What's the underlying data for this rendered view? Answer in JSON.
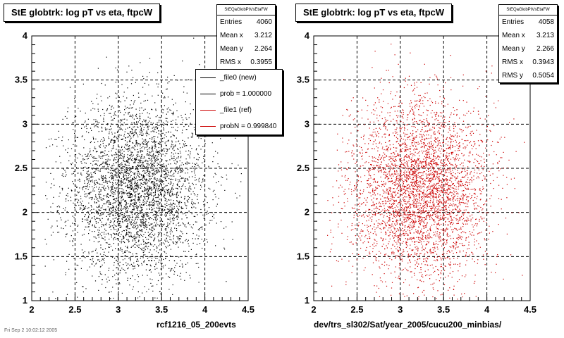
{
  "chart_data": [
    {
      "type": "scatter",
      "title": "StE globtrk: log pT vs eta, ftpcW",
      "xlabel": "rcf1216_05_200evts",
      "ylabel": "",
      "xlim": [
        2,
        4.5
      ],
      "ylim": [
        1,
        4
      ],
      "xticks": [
        "2",
        "2.5",
        "3",
        "3.5",
        "4",
        "4.5"
      ],
      "yticks": [
        "1",
        "1.5",
        "2",
        "2.5",
        "3",
        "3.5",
        "4"
      ],
      "grid": true,
      "series": [
        {
          "name": "_file0 (new)",
          "color": "#000000",
          "n_points": 4060,
          "mean_x": 3.212,
          "mean_y": 2.264,
          "rms_x": 0.3955
        }
      ],
      "stats": {
        "header": "StEQaGlobPtVsEtaFW",
        "rows": [
          {
            "label": "Entries",
            "value": "4060"
          },
          {
            "label": "Mean x",
            "value": "3.212"
          },
          {
            "label": "Mean y",
            "value": "2.264"
          },
          {
            "label": "RMS x",
            "value": "0.3955"
          }
        ]
      },
      "legend": {
        "placement": "top-right",
        "items": [
          {
            "label": "_file0 (new)",
            "color": "#000000"
          },
          {
            "label": "prob = 1.000000",
            "color": "#000000"
          },
          {
            "label": "_file1 (ref)",
            "color": "#cc0000"
          },
          {
            "label": "probN = 0.999840",
            "color": "#cc0000"
          }
        ]
      }
    },
    {
      "type": "scatter",
      "title": "StE globtrk: log pT vs eta, ftpcW",
      "xlabel": "dev/trs_sl302/Sat/year_2005/cucu200_minbias/",
      "ylabel": "",
      "xlim": [
        2,
        4.5
      ],
      "ylim": [
        1,
        4
      ],
      "xticks": [
        "2",
        "2.5",
        "3",
        "3.5",
        "4",
        "4.5"
      ],
      "yticks": [
        "1",
        "1.5",
        "2",
        "2.5",
        "3",
        "3.5",
        "4"
      ],
      "grid": true,
      "series": [
        {
          "name": "_file1 (ref)",
          "color": "#cc0000",
          "n_points": 4058,
          "mean_x": 3.213,
          "mean_y": 2.266,
          "rms_x": 0.3943,
          "rms_y": 0.5054
        }
      ],
      "stats": {
        "header": "StEQaGlobPtVsEtaFW",
        "rows": [
          {
            "label": "Entries",
            "value": "4058"
          },
          {
            "label": "Mean x",
            "value": "3.213"
          },
          {
            "label": "Mean y",
            "value": "2.266"
          },
          {
            "label": "RMS x",
            "value": "0.3943"
          },
          {
            "label": "RMS y",
            "value": "0.5054"
          }
        ]
      }
    }
  ],
  "footer": "Fri Sep 2 10:02:12 2005"
}
